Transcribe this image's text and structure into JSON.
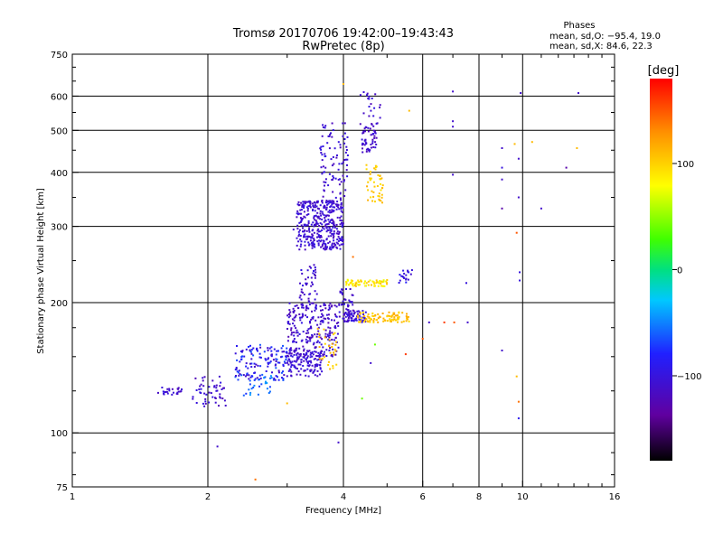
{
  "chart_data": {
    "type": "scatter",
    "title": "Tromsø 20170706 19:42:00–19:43:43",
    "subtitle": "RwPretec (8p)",
    "xlabel": "Frequency [MHz]",
    "ylabel": "Stationary phase Virtual Height [km]",
    "x_scale": "log",
    "y_scale": "log",
    "xlim": [
      1,
      16
    ],
    "ylim": [
      75,
      750
    ],
    "x_ticks": [
      1,
      2,
      4,
      6,
      8,
      10,
      16
    ],
    "x_tick_labels": [
      "1",
      "2",
      "4",
      "6",
      "8",
      "10",
      "16"
    ],
    "y_ticks": [
      75,
      100,
      200,
      300,
      400,
      500,
      600,
      750
    ],
    "y_tick_labels": [
      "75",
      "100",
      "200",
      "300",
      "400",
      "500",
      "600",
      "750"
    ],
    "grid": true,
    "stats": {
      "header": "Phases",
      "line1": "mean, sd,O: −95.4, 19.0",
      "line2": "mean, sd,X:  84.6, 22.3"
    },
    "colorbar": {
      "label": "[deg]",
      "range": [
        -180,
        180
      ],
      "ticks": [
        100,
        0,
        -100
      ],
      "tick_labels": [
        "100",
        "0",
        "−100"
      ],
      "colors": [
        "#000000",
        "#6000a0",
        "#2020ff",
        "#00c8ff",
        "#00e080",
        "#40ff00",
        "#ffff00",
        "#ff9000",
        "#ff0000"
      ]
    },
    "point_groups": [
      {
        "x": [
          1.55,
          1.75
        ],
        "y": [
          122,
          128
        ],
        "n": 25,
        "phase": [
          -120,
          -95
        ]
      },
      {
        "x": [
          1.85,
          2.2
        ],
        "y": [
          115,
          135
        ],
        "n": 50,
        "phase": [
          -125,
          -95
        ]
      },
      {
        "x": [
          2.3,
          3.0
        ],
        "y": [
          132,
          160
        ],
        "n": 140,
        "phase": [
          -120,
          -60
        ]
      },
      {
        "x": [
          2.4,
          2.8
        ],
        "y": [
          122,
          138
        ],
        "n": 30,
        "phase": [
          -80,
          -40
        ]
      },
      {
        "x": [
          3.0,
          3.6
        ],
        "y": [
          135,
          155
        ],
        "n": 120,
        "phase": [
          -115,
          -95
        ]
      },
      {
        "x": [
          3.0,
          3.9
        ],
        "y": [
          150,
          200
        ],
        "n": 250,
        "phase": [
          -125,
          -95
        ]
      },
      {
        "x": [
          3.2,
          3.5
        ],
        "y": [
          200,
          245
        ],
        "n": 40,
        "phase": [
          -120,
          -95
        ]
      },
      {
        "x": [
          3.5,
          3.9
        ],
        "y": [
          140,
          175
        ],
        "n": 30,
        "phase": [
          95,
          120
        ]
      },
      {
        "x": [
          3.15,
          4.0
        ],
        "y": [
          265,
          345
        ],
        "n": 380,
        "phase": [
          -120,
          -95
        ]
      },
      {
        "x": [
          3.55,
          4.1
        ],
        "y": [
          345,
          520
        ],
        "n": 90,
        "phase": [
          -120,
          -95
        ]
      },
      {
        "x": [
          3.9,
          4.2
        ],
        "y": [
          180,
          215
        ],
        "n": 50,
        "phase": [
          -120,
          -95
        ]
      },
      {
        "x": [
          4.0,
          4.5
        ],
        "y": [
          180,
          192
        ],
        "n": 50,
        "phase": [
          -120,
          -95
        ]
      },
      {
        "x": [
          4.3,
          5.6
        ],
        "y": [
          180,
          190
        ],
        "n": 90,
        "phase": [
          95,
          120
        ]
      },
      {
        "x": [
          4.05,
          5.0
        ],
        "y": [
          218,
          226
        ],
        "n": 70,
        "phase": [
          70,
          110
        ]
      },
      {
        "x": [
          5.3,
          5.7
        ],
        "y": [
          222,
          238
        ],
        "n": 20,
        "phase": [
          -110,
          -80
        ]
      },
      {
        "x": [
          4.4,
          4.75
        ],
        "y": [
          445,
          510
        ],
        "n": 50,
        "phase": [
          -125,
          -95
        ]
      },
      {
        "x": [
          4.35,
          4.85
        ],
        "y": [
          510,
          620
        ],
        "n": 25,
        "phase": [
          -125,
          -95
        ]
      },
      {
        "x": [
          4.5,
          4.9
        ],
        "y": [
          340,
          420
        ],
        "n": 45,
        "phase": [
          90,
          115
        ]
      }
    ],
    "points": [
      {
        "x": 2.1,
        "y": 93,
        "phase": -110
      },
      {
        "x": 2.55,
        "y": 78,
        "phase": 140
      },
      {
        "x": 3.0,
        "y": 117,
        "phase": 110
      },
      {
        "x": 3.9,
        "y": 95,
        "phase": -110
      },
      {
        "x": 4.0,
        "y": 640,
        "phase": 110
      },
      {
        "x": 4.4,
        "y": 120,
        "phase": 40
      },
      {
        "x": 5.6,
        "y": 555,
        "phase": 110
      },
      {
        "x": 6.2,
        "y": 180,
        "phase": -110
      },
      {
        "x": 6.7,
        "y": 180,
        "phase": 160
      },
      {
        "x": 7.05,
        "y": 180,
        "phase": 150
      },
      {
        "x": 7.55,
        "y": 180,
        "phase": -110
      },
      {
        "x": 7.0,
        "y": 615,
        "phase": -110
      },
      {
        "x": 7.0,
        "y": 525,
        "phase": -110
      },
      {
        "x": 7.0,
        "y": 510,
        "phase": -110
      },
      {
        "x": 7.0,
        "y": 395,
        "phase": -110
      },
      {
        "x": 7.5,
        "y": 222,
        "phase": -100
      },
      {
        "x": 9.0,
        "y": 455,
        "phase": -110
      },
      {
        "x": 9.0,
        "y": 410,
        "phase": -100
      },
      {
        "x": 9.0,
        "y": 385,
        "phase": -110
      },
      {
        "x": 9.0,
        "y": 330,
        "phase": -130
      },
      {
        "x": 9.0,
        "y": 155,
        "phase": -110
      },
      {
        "x": 9.6,
        "y": 465,
        "phase": 110
      },
      {
        "x": 9.8,
        "y": 430,
        "phase": -110
      },
      {
        "x": 9.8,
        "y": 350,
        "phase": -110
      },
      {
        "x": 9.7,
        "y": 290,
        "phase": 150
      },
      {
        "x": 9.85,
        "y": 235,
        "phase": -100
      },
      {
        "x": 9.85,
        "y": 225,
        "phase": -100
      },
      {
        "x": 9.7,
        "y": 135,
        "phase": 110
      },
      {
        "x": 9.8,
        "y": 118,
        "phase": 140
      },
      {
        "x": 9.8,
        "y": 108,
        "phase": -90
      },
      {
        "x": 9.9,
        "y": 610,
        "phase": -110
      },
      {
        "x": 10.5,
        "y": 470,
        "phase": 110
      },
      {
        "x": 11.0,
        "y": 330,
        "phase": -110
      },
      {
        "x": 12.5,
        "y": 410,
        "phase": -130
      },
      {
        "x": 13.3,
        "y": 610,
        "phase": -110
      },
      {
        "x": 13.2,
        "y": 455,
        "phase": 110
      },
      {
        "x": 4.6,
        "y": 145,
        "phase": -110
      },
      {
        "x": 4.7,
        "y": 160,
        "phase": 40
      },
      {
        "x": 6.0,
        "y": 165,
        "phase": 150
      },
      {
        "x": 5.5,
        "y": 152,
        "phase": 160
      },
      {
        "x": 3.1,
        "y": 295,
        "phase": -110
      },
      {
        "x": 4.2,
        "y": 255,
        "phase": 140
      }
    ]
  }
}
